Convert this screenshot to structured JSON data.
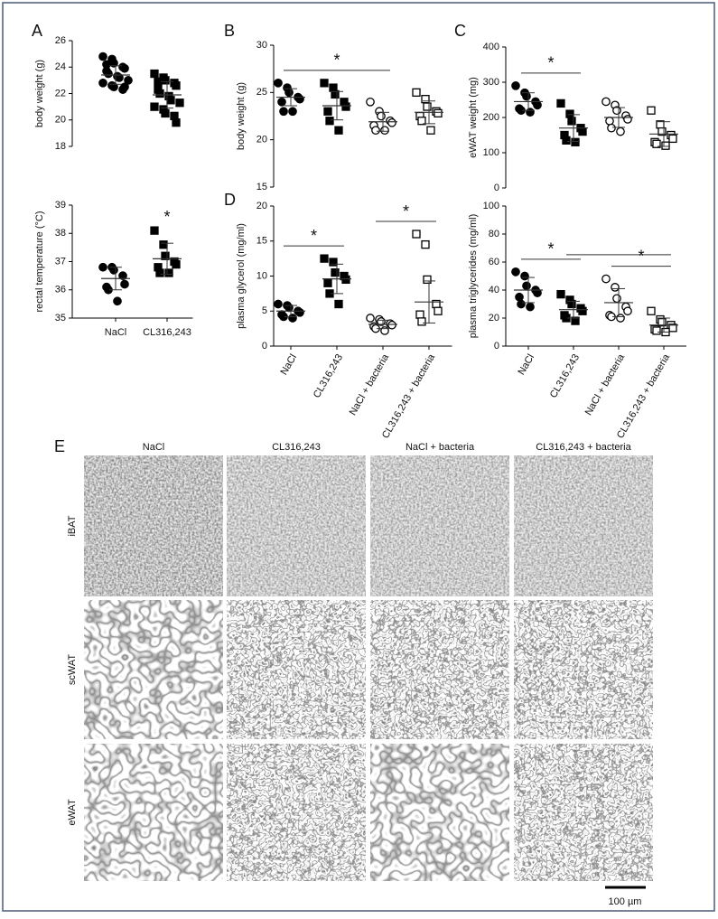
{
  "chart_data": [
    {
      "type": "dot",
      "panel": "A",
      "ylabel": "body weight (g)",
      "categories": [
        null,
        null
      ],
      "markers": [
        "circle-filled",
        "square-filled"
      ],
      "values": [
        [
          24.8,
          24.6,
          24.3,
          24.0,
          23.9,
          23.7,
          23.5,
          23.3,
          23.2,
          23.0,
          22.8,
          22.6,
          22.5,
          22.3,
          22.5,
          24.2
        ],
        [
          23.5,
          23.2,
          23.0,
          22.8,
          22.6,
          22.3,
          22.0,
          21.8,
          21.5,
          21.3,
          21.0,
          20.8,
          20.5,
          20.3,
          19.8,
          22.9
        ]
      ],
      "mean": [
        23.4,
        21.9
      ],
      "sd": [
        0.7,
        1.0
      ],
      "ylim": [
        18,
        26
      ],
      "yticks": [
        18,
        20,
        22,
        24,
        26
      ],
      "annotations": []
    },
    {
      "type": "dot",
      "ylabel": "rectal temperature (°C)",
      "categories": [
        "NaCl",
        "CL316,243"
      ],
      "markers": [
        "circle-filled",
        "square-filled"
      ],
      "values": [
        [
          36.8,
          36.8,
          36.7,
          36.5,
          36.2,
          36.1,
          36.0,
          35.6
        ],
        [
          38.1,
          37.6,
          37.2,
          37.0,
          36.9,
          36.8,
          36.6,
          36.6
        ]
      ],
      "mean": [
        36.4,
        37.1
      ],
      "sd": [
        0.4,
        0.55
      ],
      "ylim": [
        35,
        39
      ],
      "yticks": [
        35,
        36,
        37,
        38,
        39
      ],
      "annotations": [
        {
          "text": "*",
          "from": 1,
          "to": 1
        }
      ]
    },
    {
      "type": "dot",
      "panel": "B",
      "ylabel": "body weight (g)",
      "categories": [
        null,
        null,
        null,
        null
      ],
      "markers": [
        "circle-filled",
        "square-filled",
        "circle-open",
        "square-open"
      ],
      "values": [
        [
          26,
          25.5,
          25,
          24.5,
          24.3,
          24,
          23,
          23
        ],
        [
          26,
          25.5,
          24.8,
          24,
          23.5,
          23,
          22,
          21
        ],
        [
          24,
          23,
          22.5,
          22,
          21.8,
          21.5,
          21,
          21
        ],
        [
          25,
          24.3,
          23.5,
          23,
          22.8,
          22.5,
          22,
          21
        ]
      ],
      "mean": [
        24.5,
        23.6,
        21.9,
        22.9
      ],
      "sd": [
        0.9,
        1.5,
        1.0,
        1.2
      ],
      "ylim": [
        15,
        30
      ],
      "yticks": [
        15,
        20,
        25,
        30
      ],
      "annotations": [
        {
          "text": "*",
          "from": 0,
          "to": 2
        }
      ]
    },
    {
      "type": "dot",
      "panel": "C",
      "ylabel": "eWAT weight (mg)",
      "categories": [
        null,
        null,
        null,
        null
      ],
      "markers": [
        "circle-filled",
        "square-filled",
        "circle-open",
        "square-open"
      ],
      "values": [
        [
          290,
          270,
          260,
          245,
          235,
          225,
          220,
          215
        ],
        [
          240,
          210,
          190,
          170,
          160,
          150,
          135,
          130
        ],
        [
          245,
          235,
          220,
          205,
          195,
          190,
          170,
          160
        ],
        [
          220,
          180,
          160,
          150,
          140,
          130,
          125,
          120
        ]
      ],
      "mean": [
        245,
        170,
        200,
        153
      ],
      "sd": [
        25,
        38,
        28,
        35
      ],
      "ylim": [
        0,
        400
      ],
      "yticks": [
        0,
        100,
        200,
        300,
        400
      ],
      "annotations": [
        {
          "text": "*",
          "from": 0,
          "to": 1
        }
      ]
    },
    {
      "type": "dot",
      "panel": "D",
      "ylabel": "plasma glycerol (mg/ml)",
      "categories": [
        "NaCl",
        "CL316,243",
        "NaCl + bacteria",
        "CL316,243 + bacteria"
      ],
      "markers": [
        "circle-filled",
        "square-filled",
        "circle-open",
        "square-open"
      ],
      "values": [
        [
          6,
          5.8,
          5.5,
          5,
          4.8,
          4.5,
          4.2,
          4
        ],
        [
          12.5,
          12,
          10.5,
          10,
          9.5,
          9,
          7.5,
          6
        ],
        [
          4,
          3.8,
          3.5,
          3.2,
          3,
          2.8,
          2.5,
          2.2
        ],
        [
          16,
          14.5,
          9.5,
          6,
          5,
          4.5,
          3.5
        ]
      ],
      "mean": [
        5,
        9.6,
        3.1,
        6.3
      ],
      "sd": [
        0.8,
        2.1,
        0.6,
        3
      ],
      "ylim": [
        0,
        20
      ],
      "yticks": [
        0,
        5,
        10,
        15,
        20
      ],
      "annotations": [
        {
          "text": "*",
          "from": 0,
          "to": 1
        },
        {
          "text": "*",
          "from": 2,
          "to": 3
        }
      ]
    },
    {
      "type": "dot",
      "ylabel": "plasma triglycerides (mg/ml)",
      "categories": [
        "NaCl",
        "CL316,243",
        "NaCl + bacteria",
        "CL316,243 + bacteria"
      ],
      "markers": [
        "circle-filled",
        "square-filled",
        "circle-open",
        "square-open"
      ],
      "values": [
        [
          53,
          50,
          43,
          40,
          38,
          35,
          30,
          28
        ],
        [
          37,
          33,
          30,
          27,
          25,
          22,
          20,
          18
        ],
        [
          48,
          42,
          34,
          28,
          25,
          22,
          21,
          20
        ],
        [
          25,
          19,
          17,
          15,
          13,
          12,
          11,
          10
        ]
      ],
      "mean": [
        40,
        26,
        31,
        15
      ],
      "sd": [
        9,
        6,
        10,
        5
      ],
      "ylim": [
        0,
        100
      ],
      "yticks": [
        0,
        20,
        40,
        60,
        80,
        100
      ],
      "annotations": [
        {
          "text": "*",
          "from": 0,
          "to": 1
        },
        {
          "from": 1,
          "to": 3
        },
        {
          "text": "*",
          "from": 2,
          "to": 3
        }
      ]
    }
  ],
  "histology": {
    "panel": "E",
    "columns": [
      "NaCl",
      "CL316,243",
      "NaCl + bacteria",
      "CL316,243 + bacteria"
    ],
    "rows": [
      "iBAT",
      "scWAT",
      "eWAT"
    ],
    "scale_bar": "100 µm"
  }
}
